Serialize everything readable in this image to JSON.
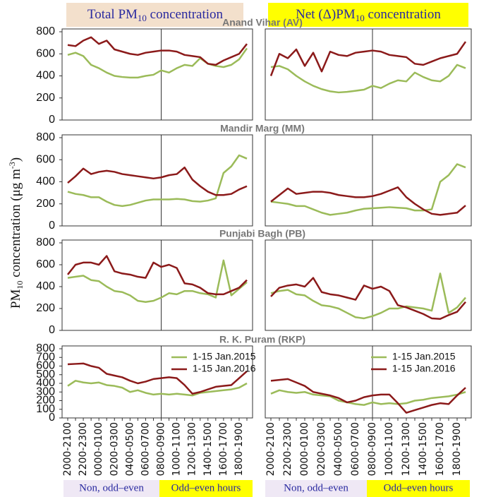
{
  "column_headers": [
    {
      "text": "Total PM",
      "sub": "10",
      "text2": " concentration"
    },
    {
      "text": "Net (Δ)PM",
      "sub": "10",
      "text2": " concentration"
    }
  ],
  "y_axis_label": {
    "text": "PM",
    "sub": "10",
    "text2": " concentration (μg m",
    "sup": "-3",
    "text3": ")"
  },
  "period_labels": [
    [
      "Non, odd–even",
      "Odd–even hours"
    ],
    [
      "Non, odd–even",
      "Odd–even hours"
    ]
  ],
  "chart_data": [
    {
      "type": "line",
      "title": "Anand Vihar (AV)",
      "ylim": [
        0,
        800
      ],
      "yticks": [
        0,
        200,
        400,
        600,
        800
      ],
      "series": [
        {
          "color": "#9bbb59",
          "values": [
            590,
            610,
            580,
            500,
            470,
            430,
            400,
            390,
            385,
            385,
            400,
            410,
            450,
            430,
            470,
            500,
            490,
            560,
            510,
            490,
            480,
            500,
            550,
            650
          ]
        },
        {
          "color": "#8b1a1a",
          "values": [
            680,
            670,
            720,
            750,
            690,
            720,
            640,
            620,
            600,
            590,
            610,
            620,
            630,
            630,
            620,
            590,
            580,
            570,
            510,
            500,
            540,
            570,
            600,
            690
          ]
        }
      ]
    },
    {
      "type": "line",
      "ylim": [
        0,
        800
      ],
      "series": [
        {
          "color": "#9bbb59",
          "values": [
            480,
            490,
            460,
            400,
            350,
            310,
            280,
            260,
            250,
            255,
            265,
            275,
            310,
            290,
            330,
            360,
            350,
            430,
            390,
            360,
            350,
            400,
            500,
            470
          ]
        },
        {
          "color": "#8b1a1a",
          "values": [
            400,
            600,
            560,
            640,
            490,
            610,
            440,
            620,
            590,
            580,
            610,
            620,
            630,
            620,
            590,
            580,
            570,
            510,
            500,
            530,
            560,
            580,
            600,
            710
          ]
        }
      ]
    },
    {
      "type": "line",
      "title": "Mandir Marg (MM)",
      "ylim": [
        0,
        800
      ],
      "yticks": [
        0,
        200,
        400,
        600,
        800
      ],
      "series": [
        {
          "color": "#9bbb59",
          "values": [
            310,
            290,
            280,
            260,
            260,
            220,
            190,
            180,
            190,
            210,
            230,
            240,
            240,
            240,
            245,
            240,
            225,
            220,
            230,
            250,
            480,
            540,
            640,
            610
          ]
        },
        {
          "color": "#8b1a1a",
          "values": [
            390,
            450,
            520,
            470,
            490,
            500,
            490,
            470,
            460,
            450,
            440,
            430,
            440,
            460,
            470,
            530,
            420,
            360,
            310,
            280,
            280,
            290,
            330,
            360
          ]
        }
      ]
    },
    {
      "type": "line",
      "ylim": [
        0,
        800
      ],
      "series": [
        {
          "color": "#9bbb59",
          "values": [
            220,
            210,
            200,
            180,
            180,
            150,
            120,
            100,
            110,
            120,
            140,
            155,
            160,
            165,
            170,
            165,
            160,
            140,
            140,
            150,
            400,
            460,
            560,
            530
          ]
        },
        {
          "color": "#8b1a1a",
          "values": [
            220,
            280,
            340,
            290,
            300,
            310,
            310,
            300,
            280,
            270,
            260,
            260,
            270,
            290,
            320,
            350,
            260,
            200,
            150,
            110,
            100,
            110,
            120,
            185
          ]
        }
      ]
    },
    {
      "type": "line",
      "title": "Punjabi Bagh (PB)",
      "ylim": [
        0,
        800
      ],
      "yticks": [
        0,
        200,
        400,
        600,
        800
      ],
      "series": [
        {
          "color": "#9bbb59",
          "values": [
            480,
            490,
            500,
            460,
            450,
            400,
            360,
            350,
            320,
            270,
            260,
            270,
            300,
            340,
            330,
            360,
            360,
            340,
            330,
            300,
            640,
            320,
            380,
            440
          ]
        },
        {
          "color": "#8b1a1a",
          "values": [
            510,
            600,
            620,
            620,
            600,
            680,
            540,
            520,
            510,
            490,
            480,
            620,
            580,
            600,
            570,
            430,
            420,
            390,
            340,
            330,
            330,
            360,
            390,
            460
          ]
        }
      ]
    },
    {
      "type": "line",
      "ylim": [
        0,
        800
      ],
      "series": [
        {
          "color": "#9bbb59",
          "values": [
            340,
            360,
            370,
            330,
            320,
            270,
            230,
            220,
            200,
            160,
            120,
            110,
            130,
            160,
            200,
            200,
            220,
            210,
            200,
            180,
            520,
            160,
            210,
            300
          ]
        },
        {
          "color": "#8b1a1a",
          "values": [
            310,
            390,
            410,
            420,
            400,
            480,
            350,
            330,
            320,
            300,
            280,
            410,
            380,
            400,
            360,
            230,
            210,
            180,
            150,
            110,
            105,
            140,
            170,
            260
          ]
        }
      ]
    },
    {
      "type": "line",
      "title": "R. K. Puram (RKP)",
      "ylim": [
        0,
        800
      ],
      "yticks": [
        0,
        100,
        200,
        300,
        400,
        500,
        600,
        700,
        800
      ],
      "legend": "upper right",
      "categories": [
        "2000-2100",
        null,
        "2200-2300",
        null,
        "0000-0100",
        null,
        "0200-0300",
        null,
        "0400-0500",
        null,
        "0600-0700",
        null,
        "0800-0900",
        null,
        "1000-1100",
        null,
        "1200-1300",
        null,
        "1400-1500",
        null,
        "1600-1700",
        null,
        "1800-1900",
        null
      ],
      "series": [
        {
          "name": "1-15 Jan.2015",
          "color": "#9bbb59",
          "values": [
            370,
            430,
            410,
            400,
            410,
            380,
            370,
            350,
            300,
            320,
            290,
            270,
            280,
            270,
            280,
            270,
            260,
            290,
            300,
            310,
            320,
            330,
            350,
            400
          ]
        },
        {
          "name": "1-15 Jan.2016",
          "color": "#8b1a1a",
          "values": [
            620,
            625,
            630,
            600,
            580,
            510,
            490,
            470,
            430,
            400,
            420,
            450,
            460,
            470,
            460,
            380,
            280,
            300,
            330,
            360,
            370,
            380,
            460,
            540
          ]
        }
      ]
    },
    {
      "type": "line",
      "ylim": [
        0,
        800
      ],
      "legend": "upper right",
      "categories": [
        "2000-2100",
        null,
        "2200-2300",
        null,
        "0000-0100",
        null,
        "0200-0300",
        null,
        "0400-0500",
        null,
        "0600-0700",
        null,
        "0800-0900",
        null,
        "1000-1100",
        null,
        "1200-1300",
        null,
        "1400-1500",
        null,
        "1600-1700",
        null,
        "1800-1900",
        null
      ],
      "series": [
        {
          "name": "1-15 Jan.2015",
          "color": "#9bbb59",
          "values": [
            280,
            320,
            300,
            290,
            300,
            270,
            260,
            250,
            200,
            180,
            160,
            150,
            180,
            160,
            170,
            160,
            170,
            200,
            210,
            230,
            240,
            250,
            270,
            300
          ]
        },
        {
          "name": "1-15 Jan.2016",
          "color": "#8b1a1a",
          "values": [
            430,
            440,
            450,
            410,
            370,
            300,
            280,
            260,
            230,
            180,
            200,
            240,
            260,
            270,
            270,
            170,
            60,
            90,
            120,
            150,
            170,
            160,
            260,
            350
          ]
        }
      ]
    }
  ]
}
